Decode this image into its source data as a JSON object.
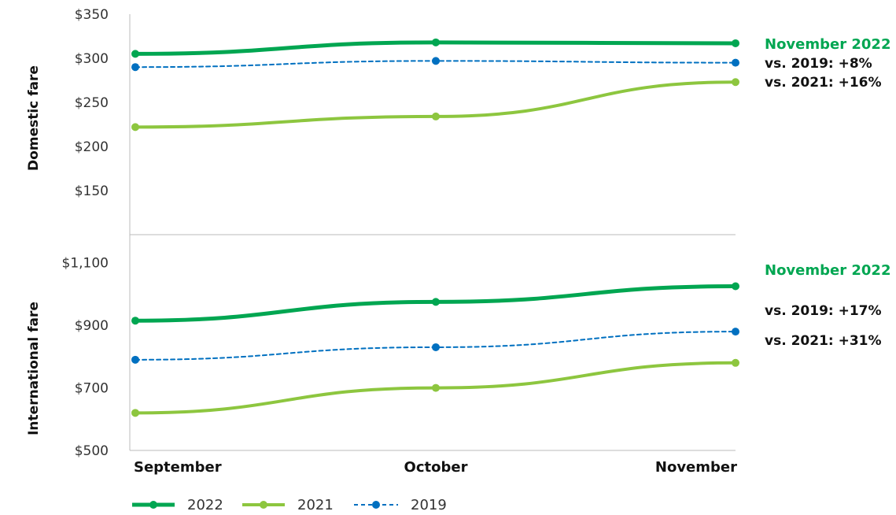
{
  "chart_data": [
    {
      "type": "line",
      "ylabel": "Domestic fare",
      "categories": [
        "September",
        "October",
        "November"
      ],
      "yticks": [
        "$150",
        "$200",
        "$250",
        "$300",
        "$350"
      ],
      "ylim": [
        100,
        350
      ],
      "series": [
        {
          "name": "2022",
          "values": [
            305,
            318,
            317
          ],
          "color": "#00a651",
          "style": "solid-thick"
        },
        {
          "name": "2021",
          "values": [
            222,
            234,
            273
          ],
          "color": "#8dc63f",
          "style": "solid"
        },
        {
          "name": "2019",
          "values": [
            290,
            297,
            295
          ],
          "color": "#0070c0",
          "style": "dashed"
        }
      ],
      "annotations": {
        "title": "November 2022",
        "lines": [
          "vs. 2019: +8%",
          "vs. 2021: +16%"
        ]
      }
    },
    {
      "type": "line",
      "ylabel": "International fare",
      "categories": [
        "September",
        "October",
        "November"
      ],
      "yticks": [
        "$500",
        "$700",
        "$900",
        "$1,100"
      ],
      "ylim": [
        500,
        1190
      ],
      "series": [
        {
          "name": "2022",
          "values": [
            915,
            975,
            1025
          ],
          "color": "#00a651",
          "style": "solid-thick"
        },
        {
          "name": "2021",
          "values": [
            620,
            700,
            780
          ],
          "color": "#8dc63f",
          "style": "solid"
        },
        {
          "name": "2019",
          "values": [
            790,
            830,
            880
          ],
          "color": "#0070c0",
          "style": "dashed"
        }
      ],
      "annotations": {
        "title": "November 2022",
        "lines": [
          "vs. 2019: +17%",
          "vs. 2021: +31%"
        ]
      }
    }
  ],
  "legend": [
    {
      "label": "2022",
      "color": "#00a651"
    },
    {
      "label": "2021",
      "color": "#8dc63f"
    },
    {
      "label": "2019",
      "color": "#0070c0"
    }
  ]
}
